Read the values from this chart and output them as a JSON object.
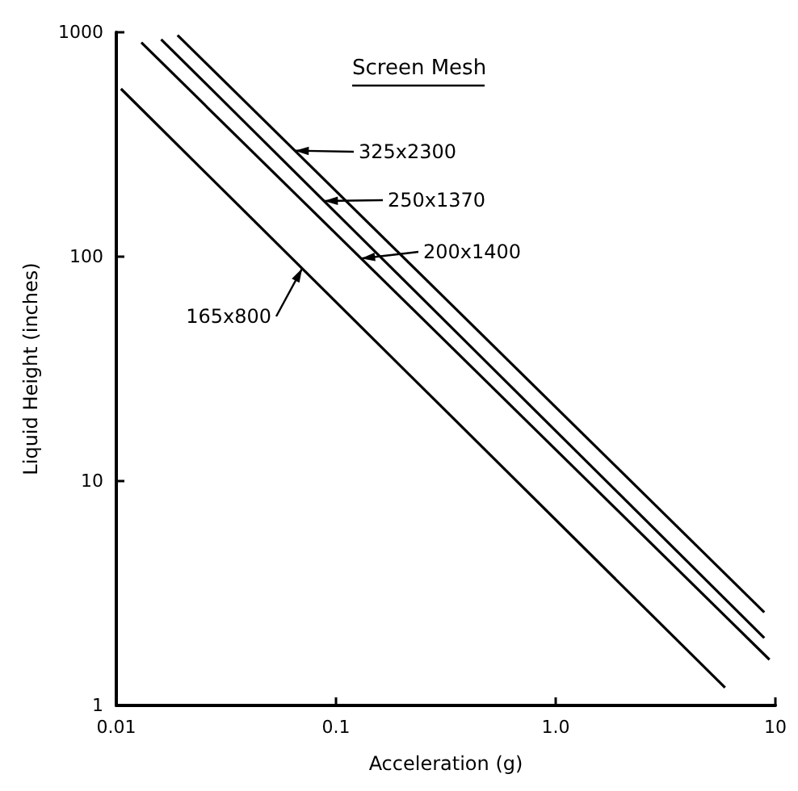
{
  "chart_data": {
    "type": "line",
    "xlabel": "Acceleration (g)",
    "ylabel": "Liquid Height (inches)",
    "legend_title": "Screen Mesh",
    "log": "xy",
    "xlim": [
      0.01,
      10
    ],
    "ylim": [
      1,
      1000
    ],
    "xticks": [
      0.01,
      0.1,
      {
        "value": 1,
        "label": "1.0"
      },
      10
    ],
    "yticks": [
      1,
      10,
      100,
      1000
    ],
    "grid": false,
    "legend": "top",
    "marker": "none",
    "line_style": "solid",
    "series": [
      {
        "name": "325x2300",
        "color": "#000000",
        "x": [
          0.019,
          8.9
        ],
        "values": [
          970,
          2.6
        ]
      },
      {
        "name": "250x1370",
        "color": "#000000",
        "x": [
          0.016,
          8.9
        ],
        "values": [
          930,
          2.0
        ]
      },
      {
        "name": "200x1400",
        "color": "#000000",
        "x": [
          0.013,
          9.4
        ],
        "values": [
          900,
          1.6
        ]
      },
      {
        "name": "165x800",
        "color": "#000000",
        "x": [
          0.0105,
          5.9
        ],
        "values": [
          560,
          1.2
        ]
      }
    ]
  }
}
